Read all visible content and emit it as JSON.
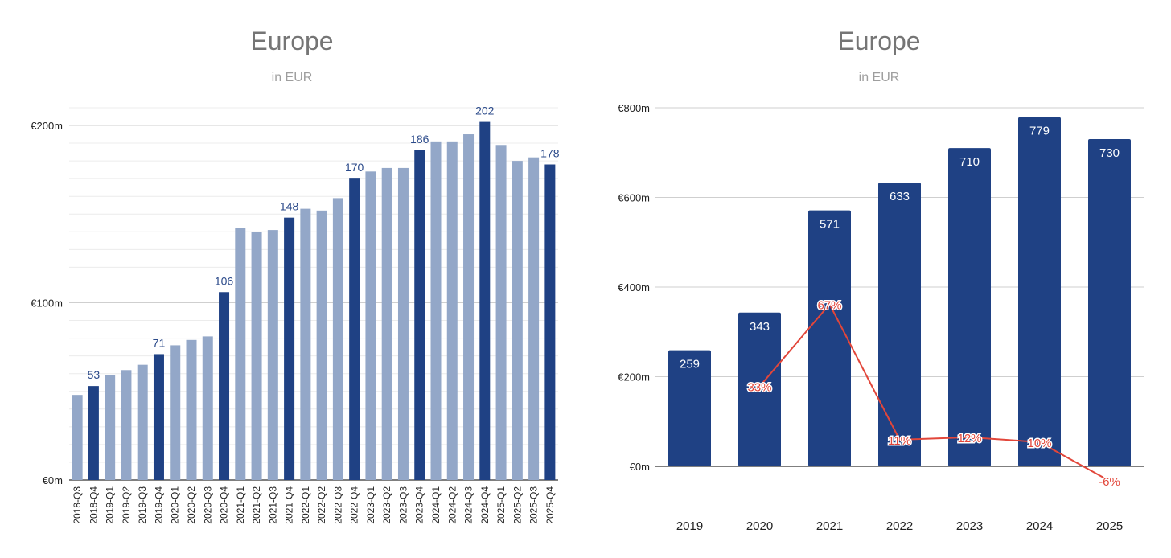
{
  "colors": {
    "dark": "#1f4184",
    "light": "#93a7c8",
    "line": "#e2463a",
    "grid": "#d9d9d9",
    "axis": "#333333"
  },
  "chart_data": [
    {
      "type": "bar",
      "title": "Europe",
      "subtitle": "in EUR",
      "categories": [
        "2018-Q3",
        "2018-Q4",
        "2019-Q1",
        "2019-Q2",
        "2019-Q3",
        "2019-Q4",
        "2020-Q1",
        "2020-Q2",
        "2020-Q3",
        "2020-Q4",
        "2021-Q1",
        "2021-Q2",
        "2021-Q3",
        "2021-Q4",
        "2022-Q1",
        "2022-Q2",
        "2022-Q3",
        "2022-Q4",
        "2023-Q1",
        "2023-Q2",
        "2023-Q3",
        "2023-Q4",
        "2024-Q1",
        "2024-Q2",
        "2024-Q3",
        "2024-Q4",
        "2025-Q1",
        "2025-Q2",
        "2025-Q3",
        "2025-Q4"
      ],
      "values": [
        48,
        53,
        59,
        62,
        65,
        71,
        76,
        79,
        81,
        106,
        142,
        140,
        141,
        148,
        153,
        152,
        159,
        170,
        174,
        176,
        176,
        186,
        191,
        191,
        195,
        202,
        189,
        180,
        182,
        178
      ],
      "highlighted": [
        "2018-Q4",
        "2019-Q4",
        "2020-Q4",
        "2021-Q4",
        "2022-Q4",
        "2023-Q4",
        "2024-Q4",
        "2025-Q4"
      ],
      "data_labels": {
        "2018-Q4": "53",
        "2019-Q4": "71",
        "2020-Q4": "106",
        "2021-Q4": "148",
        "2022-Q4": "170",
        "2023-Q4": "186",
        "2024-Q4": "202",
        "2025-Q4": "178"
      },
      "ylim": [
        0,
        200
      ],
      "yticks": [
        {
          "value": 0,
          "label": "€0m"
        },
        {
          "value": 100,
          "label": "€100m"
        },
        {
          "value": 200,
          "label": "€200m"
        }
      ],
      "grid": true,
      "xlabel": "",
      "ylabel": ""
    },
    {
      "type": "bar",
      "title": "Europe",
      "subtitle": "in EUR",
      "categories": [
        "2019",
        "2020",
        "2021",
        "2022",
        "2023",
        "2024",
        "2025"
      ],
      "values": [
        259,
        343,
        571,
        633,
        710,
        779,
        730
      ],
      "ylim": [
        0,
        800
      ],
      "yticks": [
        {
          "value": 0,
          "label": "€0m"
        },
        {
          "value": 200,
          "label": "€200m"
        },
        {
          "value": 400,
          "label": "€400m"
        },
        {
          "value": 600,
          "label": "€600m"
        },
        {
          "value": 800,
          "label": "€800m"
        }
      ],
      "grid": true,
      "growth_line": {
        "type": "line",
        "categories": [
          "2020",
          "2021",
          "2022",
          "2023",
          "2024",
          "2025"
        ],
        "values": [
          33,
          67,
          11,
          12,
          10,
          -6
        ],
        "labels": [
          "33%",
          "67%",
          "11%",
          "12%",
          "10%",
          "-6%"
        ]
      },
      "xlabel": "",
      "ylabel": ""
    }
  ]
}
